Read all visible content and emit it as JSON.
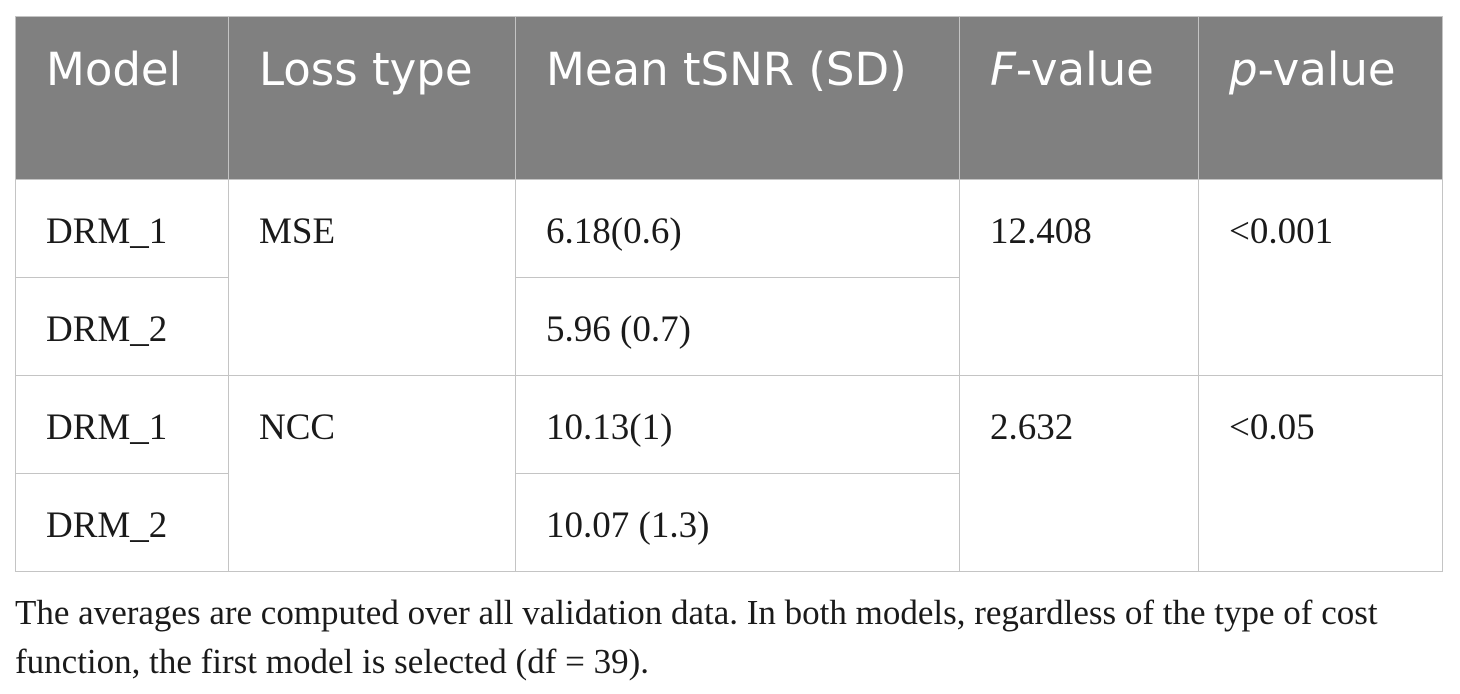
{
  "table": {
    "headers": {
      "model": "Model",
      "loss_type": "Loss type",
      "mean_tsnr": "Mean tSNR (SD)",
      "f_value": {
        "italic": "F",
        "rest": "-value"
      },
      "p_value": {
        "italic": "p",
        "rest": "-value"
      }
    },
    "groups": [
      {
        "loss_type": "MSE",
        "f_value": "12.408",
        "p_value": "<0.001",
        "rows": [
          {
            "model": "DRM_1",
            "mean_tsnr": "6.18(0.6)"
          },
          {
            "model": "DRM_2",
            "mean_tsnr": "5.96 (0.7)"
          }
        ]
      },
      {
        "loss_type": "NCC",
        "f_value": "2.632",
        "p_value": "<0.05",
        "rows": [
          {
            "model": "DRM_1",
            "mean_tsnr": "10.13(1)"
          },
          {
            "model": "DRM_2",
            "mean_tsnr": "10.07 (1.3)"
          }
        ]
      }
    ]
  },
  "footnote": "The averages are computed over all validation data. In both models, regardless of the type of cost function, the first model is selected (df = 39).",
  "colors": {
    "header_bg": "#808080",
    "header_text": "#ffffff",
    "border": "#c4c4c4"
  }
}
